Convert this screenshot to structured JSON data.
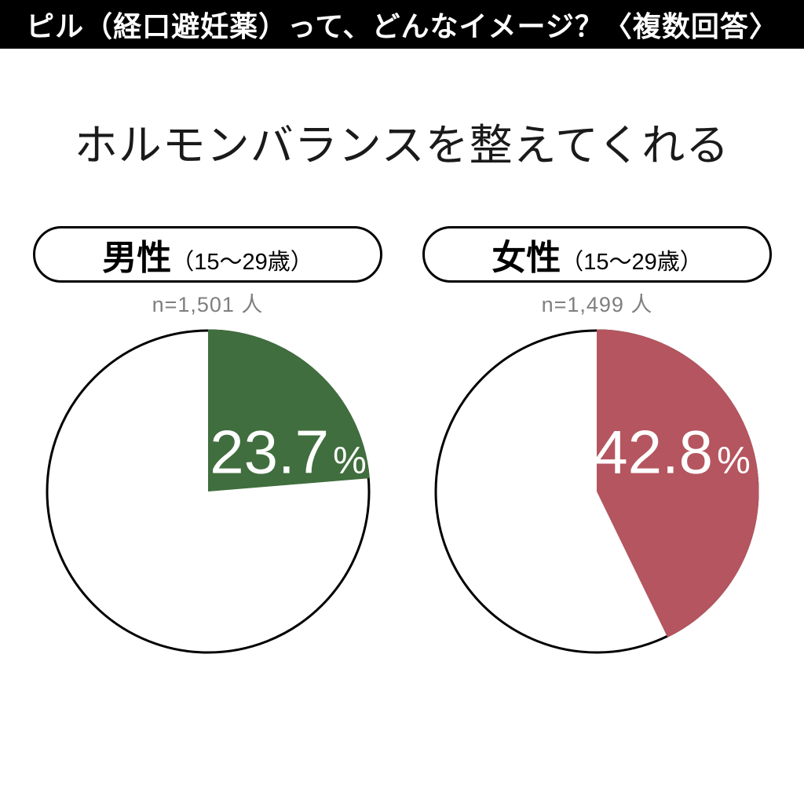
{
  "header": {
    "title": "ピル（経口避妊薬）って、どんなイメージ？〈複数回答〉"
  },
  "subtitle": "ホルモンバランスを整えてくれる",
  "colors": {
    "header_bg": "#000000",
    "header_fg": "#ffffff",
    "male_slice": "#406e3e",
    "female_slice": "#b5555f",
    "pie_outline": "#000000",
    "sample_text": "#7f7f7f",
    "value_text": "#ffffff"
  },
  "chart_data": [
    {
      "type": "pie",
      "group_label": "男性",
      "group_note": "（15～29歳）",
      "sample_label": "n=1,501 人",
      "value_label": "23.7",
      "unit": "%",
      "start_angle": "top",
      "direction": "clockwise",
      "slices": [
        {
          "name": "ホルモンバランスを整えてくれる",
          "value": 23.7,
          "color": "#406e3e"
        },
        {
          "name": "remainder",
          "value": 76.3,
          "color": "#ffffff"
        }
      ]
    },
    {
      "type": "pie",
      "group_label": "女性",
      "group_note": "（15～29歳）",
      "sample_label": "n=1,499 人",
      "value_label": "42.8",
      "unit": "%",
      "start_angle": "top",
      "direction": "clockwise",
      "slices": [
        {
          "name": "ホルモンバランスを整えてくれる",
          "value": 42.8,
          "color": "#b5555f"
        },
        {
          "name": "remainder",
          "value": 57.2,
          "color": "#ffffff"
        }
      ]
    }
  ]
}
